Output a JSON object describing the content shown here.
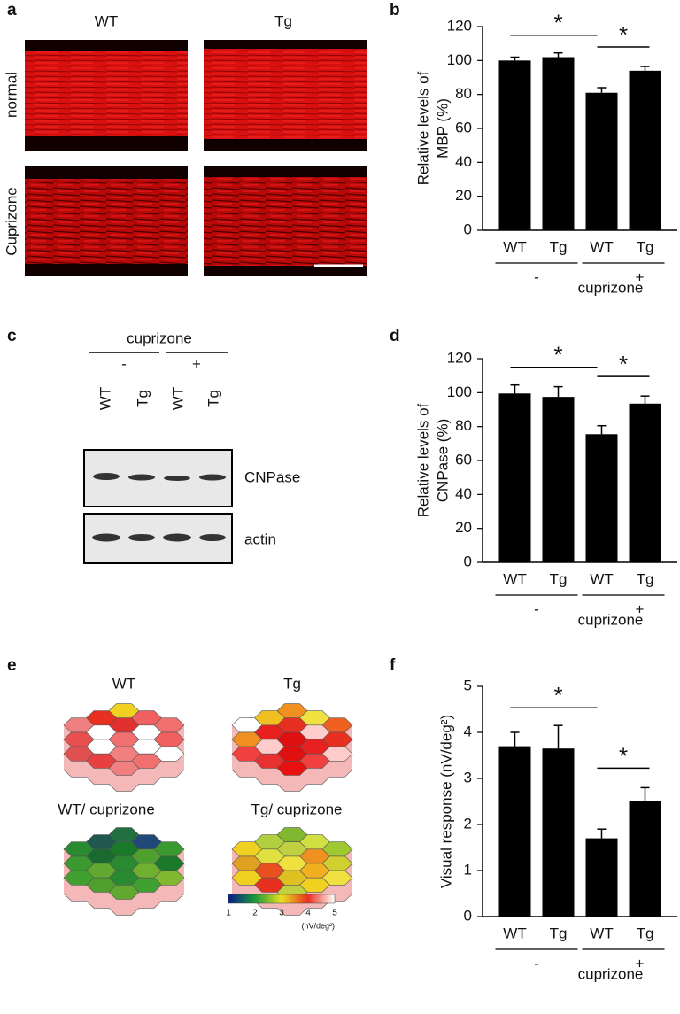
{
  "panel_labels": [
    "a",
    "b",
    "c",
    "d",
    "e",
    "f"
  ],
  "micrographs": {
    "columns": [
      "WT",
      "Tg"
    ],
    "rows": [
      "normal",
      "Cuprizone"
    ]
  },
  "blot": {
    "treatment": "cuprizone",
    "groups": [
      "-",
      "+"
    ],
    "lanes": [
      "WT",
      "Tg",
      "WT",
      "Tg"
    ],
    "bands": [
      "CNPase",
      "actin"
    ]
  },
  "maps": {
    "titles": [
      "WT",
      "Tg",
      "WT/ cuprizone",
      "Tg/ cuprizone"
    ],
    "colorbar": {
      "ticks": [
        1,
        2,
        3,
        4,
        5
      ],
      "unit": "(nV/deg²)"
    }
  },
  "chart_data": [
    {
      "type": "bar",
      "ylabel": [
        "Relative levels of",
        "MBP (%)"
      ],
      "categories": [
        "WT",
        "Tg",
        "WT",
        "Tg"
      ],
      "values": [
        100,
        102,
        81,
        94
      ],
      "errors": [
        2,
        2.5,
        3,
        2.5
      ],
      "color": "#000000",
      "ylim": [
        0,
        120
      ],
      "yticks": [
        0,
        20,
        40,
        60,
        80,
        100,
        120
      ],
      "groups": [
        "-",
        "+"
      ],
      "group_title": "cuprizone",
      "annotations": [
        "*",
        "*"
      ]
    },
    {
      "type": "bar",
      "ylabel": [
        "Relative levels of",
        "CNPase (%)"
      ],
      "categories": [
        "WT",
        "Tg",
        "WT",
        "Tg"
      ],
      "values": [
        99.5,
        97.5,
        75.5,
        93.5
      ],
      "errors": [
        5,
        6,
        5,
        4.5
      ],
      "color": "#000000",
      "ylim": [
        0,
        120
      ],
      "yticks": [
        0,
        20,
        40,
        60,
        80,
        100,
        120
      ],
      "groups": [
        "-",
        "+"
      ],
      "group_title": "cuprizone",
      "annotations": [
        "*",
        "*"
      ]
    },
    {
      "type": "bar",
      "ylabel": [
        "Visual response (nV/deg²)"
      ],
      "categories": [
        "WT",
        "Tg",
        "WT",
        "Tg"
      ],
      "values": [
        3.7,
        3.65,
        1.7,
        2.5
      ],
      "errors": [
        0.3,
        0.5,
        0.2,
        0.3
      ],
      "color": "#000000",
      "ylim": [
        0,
        5
      ],
      "yticks": [
        0,
        1,
        2,
        3,
        4,
        5
      ],
      "groups": [
        "-",
        "+"
      ],
      "group_title": "cuprizone",
      "annotations": [
        "*",
        "*"
      ]
    }
  ]
}
